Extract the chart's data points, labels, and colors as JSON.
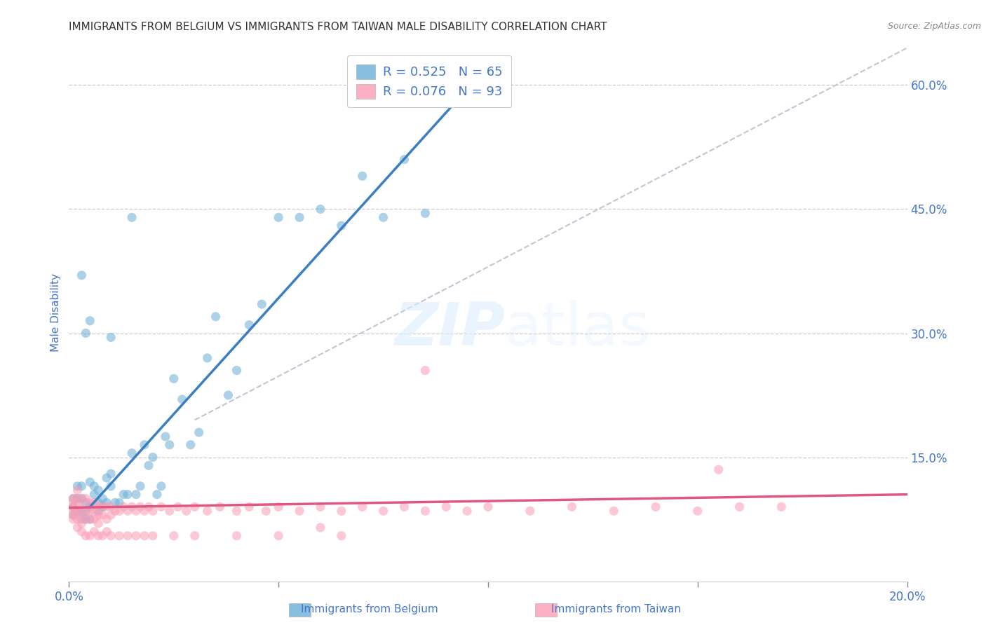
{
  "title": "IMMIGRANTS FROM BELGIUM VS IMMIGRANTS FROM TAIWAN MALE DISABILITY CORRELATION CHART",
  "source": "Source: ZipAtlas.com",
  "xlabel_belgium": "Immigrants from Belgium",
  "xlabel_taiwan": "Immigrants from Taiwan",
  "ylabel": "Male Disability",
  "xlim": [
    0.0,
    0.2
  ],
  "ylim": [
    0.0,
    0.65
  ],
  "ytick_right": [
    0.15,
    0.3,
    0.45,
    0.6
  ],
  "ytick_right_labels": [
    "15.0%",
    "30.0%",
    "45.0%",
    "60.0%"
  ],
  "legend_belgium": "R = 0.525   N = 65",
  "legend_taiwan": "R = 0.076   N = 93",
  "belgium_color": "#6baed6",
  "taiwan_color": "#fc9cb4",
  "trendline_belgium_color": "#3a7fc1",
  "trendline_taiwan_color": "#e05880",
  "ref_line_color": "#b0b8c8",
  "background_color": "#ffffff",
  "grid_color": "#cccccc",
  "title_color": "#333333",
  "axis_label_color": "#4477cc",
  "tick_color": "#4477cc",
  "belgium_scatter": {
    "x": [
      0.001,
      0.001,
      0.001,
      0.002,
      0.002,
      0.002,
      0.003,
      0.003,
      0.003,
      0.003,
      0.004,
      0.004,
      0.004,
      0.005,
      0.005,
      0.005,
      0.006,
      0.006,
      0.007,
      0.007,
      0.007,
      0.008,
      0.008,
      0.009,
      0.009,
      0.01,
      0.01,
      0.011,
      0.012,
      0.013,
      0.014,
      0.015,
      0.016,
      0.017,
      0.018,
      0.019,
      0.02,
      0.021,
      0.022,
      0.023,
      0.024,
      0.025,
      0.027,
      0.029,
      0.031,
      0.033,
      0.035,
      0.038,
      0.04,
      0.043,
      0.046,
      0.05,
      0.055,
      0.06,
      0.065,
      0.07,
      0.075,
      0.08,
      0.085,
      0.09,
      0.003,
      0.004,
      0.005,
      0.01,
      0.015
    ],
    "y": [
      0.1,
      0.09,
      0.08,
      0.115,
      0.1,
      0.085,
      0.115,
      0.1,
      0.085,
      0.075,
      0.095,
      0.085,
      0.075,
      0.12,
      0.09,
      0.075,
      0.115,
      0.105,
      0.11,
      0.095,
      0.085,
      0.1,
      0.09,
      0.125,
      0.095,
      0.13,
      0.115,
      0.095,
      0.095,
      0.105,
      0.105,
      0.155,
      0.105,
      0.115,
      0.165,
      0.14,
      0.15,
      0.105,
      0.115,
      0.175,
      0.165,
      0.245,
      0.22,
      0.165,
      0.18,
      0.27,
      0.32,
      0.225,
      0.255,
      0.31,
      0.335,
      0.44,
      0.44,
      0.45,
      0.43,
      0.49,
      0.44,
      0.51,
      0.445,
      0.59,
      0.37,
      0.3,
      0.315,
      0.295,
      0.44
    ]
  },
  "taiwan_scatter": {
    "x": [
      0.001,
      0.001,
      0.001,
      0.001,
      0.001,
      0.001,
      0.002,
      0.002,
      0.002,
      0.002,
      0.002,
      0.003,
      0.003,
      0.003,
      0.003,
      0.004,
      0.004,
      0.004,
      0.005,
      0.005,
      0.005,
      0.006,
      0.006,
      0.006,
      0.007,
      0.007,
      0.007,
      0.008,
      0.008,
      0.009,
      0.009,
      0.01,
      0.01,
      0.011,
      0.012,
      0.013,
      0.014,
      0.015,
      0.016,
      0.017,
      0.018,
      0.019,
      0.02,
      0.022,
      0.024,
      0.026,
      0.028,
      0.03,
      0.033,
      0.036,
      0.04,
      0.043,
      0.047,
      0.05,
      0.055,
      0.06,
      0.065,
      0.07,
      0.075,
      0.08,
      0.085,
      0.09,
      0.095,
      0.1,
      0.11,
      0.12,
      0.13,
      0.14,
      0.15,
      0.16,
      0.002,
      0.003,
      0.004,
      0.005,
      0.006,
      0.007,
      0.008,
      0.009,
      0.01,
      0.012,
      0.014,
      0.016,
      0.018,
      0.02,
      0.025,
      0.03,
      0.04,
      0.05,
      0.065,
      0.17,
      0.085,
      0.155,
      0.06
    ],
    "y": [
      0.1,
      0.095,
      0.09,
      0.085,
      0.08,
      0.075,
      0.11,
      0.1,
      0.09,
      0.085,
      0.075,
      0.1,
      0.09,
      0.08,
      0.07,
      0.1,
      0.085,
      0.075,
      0.095,
      0.085,
      0.075,
      0.095,
      0.085,
      0.075,
      0.09,
      0.08,
      0.07,
      0.09,
      0.08,
      0.09,
      0.075,
      0.09,
      0.08,
      0.085,
      0.085,
      0.09,
      0.085,
      0.09,
      0.085,
      0.09,
      0.085,
      0.09,
      0.085,
      0.09,
      0.085,
      0.09,
      0.085,
      0.09,
      0.085,
      0.09,
      0.085,
      0.09,
      0.085,
      0.09,
      0.085,
      0.09,
      0.085,
      0.09,
      0.085,
      0.09,
      0.085,
      0.09,
      0.085,
      0.09,
      0.085,
      0.09,
      0.085,
      0.09,
      0.085,
      0.09,
      0.065,
      0.06,
      0.055,
      0.055,
      0.06,
      0.055,
      0.055,
      0.06,
      0.055,
      0.055,
      0.055,
      0.055,
      0.055,
      0.055,
      0.055,
      0.055,
      0.055,
      0.055,
      0.055,
      0.09,
      0.255,
      0.135,
      0.065
    ]
  },
  "trendline_belgium": {
    "x": [
      0.005,
      0.095
    ],
    "y": [
      0.09,
      0.595
    ]
  },
  "trendline_taiwan": {
    "x": [
      0.0,
      0.2
    ],
    "y": [
      0.089,
      0.105
    ]
  },
  "refline": {
    "x": [
      0.03,
      0.2
    ],
    "y": [
      0.195,
      0.645
    ]
  }
}
